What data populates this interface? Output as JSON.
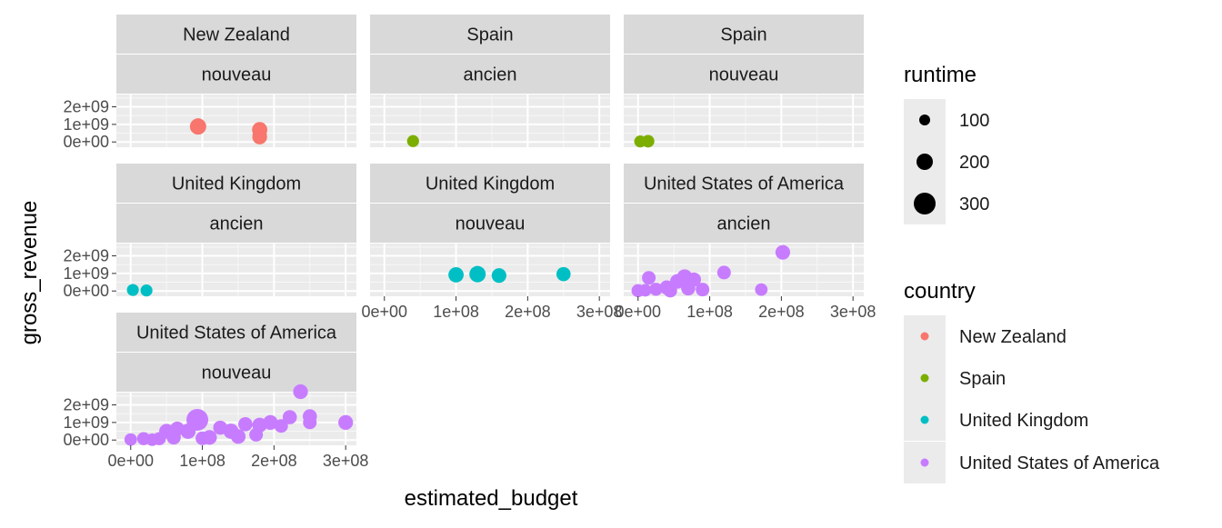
{
  "chart_data": {
    "type": "scatter",
    "xlabel": "estimated_budget",
    "ylabel": "gross_revenue",
    "xlim": [
      -20000000.0,
      315000000.0
    ],
    "ylim": [
      -300000000.0,
      2700000000.0
    ],
    "xticks": [
      0,
      100000000,
      200000000,
      300000000
    ],
    "xtick_labels": [
      "0e+00",
      "1e+08",
      "2e+08",
      "3e+08"
    ],
    "yticks": [
      0,
      1000000000,
      2000000000
    ],
    "ytick_labels": [
      "0e+00",
      "1e+09",
      "2e+09"
    ],
    "grid": true,
    "legend_position": "right",
    "size_legend": {
      "title": "runtime",
      "items": [
        {
          "label": "100",
          "value": 100
        },
        {
          "label": "200",
          "value": 200
        },
        {
          "label": "300",
          "value": 300
        }
      ]
    },
    "color_legend": {
      "title": "country",
      "items": [
        {
          "label": "New Zealand",
          "color": "#F8766D"
        },
        {
          "label": "Spain",
          "color": "#7CAE00"
        },
        {
          "label": "United Kingdom",
          "color": "#00BFC4"
        },
        {
          "label": "United States of America",
          "color": "#C77CFF"
        }
      ]
    },
    "panels": [
      {
        "strip_top": "New Zealand",
        "strip_bottom": "nouveau",
        "color": "#F8766D",
        "points": [
          [
            94000000,
            880000000,
            200
          ],
          [
            180000000,
            700000000,
            180
          ],
          [
            180000000,
            420000000,
            160
          ],
          [
            180000000,
            280000000,
            170
          ]
        ]
      },
      {
        "strip_top": "Spain",
        "strip_bottom": "ancien",
        "color": "#7CAE00",
        "points": [
          [
            40000000,
            50000000,
            120
          ]
        ]
      },
      {
        "strip_top": "Spain",
        "strip_bottom": "nouveau",
        "color": "#7CAE00",
        "points": [
          [
            3000000,
            30000000,
            120
          ],
          [
            14000000,
            40000000,
            130
          ]
        ]
      },
      {
        "strip_top": "United Kingdom",
        "strip_bottom": "ancien",
        "color": "#00BFC4",
        "points": [
          [
            3000000,
            60000000,
            120
          ],
          [
            22000000,
            30000000,
            120
          ]
        ]
      },
      {
        "strip_top": "United Kingdom",
        "strip_bottom": "nouveau",
        "color": "#00BFC4",
        "points": [
          [
            100000000,
            920000000,
            180
          ],
          [
            130000000,
            960000000,
            200
          ],
          [
            160000000,
            880000000,
            170
          ],
          [
            250000000,
            960000000,
            160
          ]
        ]
      },
      {
        "strip_top": "United States of America",
        "strip_bottom": "ancien",
        "color": "#C77CFF",
        "points": [
          [
            0,
            20000000,
            140
          ],
          [
            15000000,
            750000000,
            150
          ],
          [
            25000000,
            100000000,
            140
          ],
          [
            40000000,
            200000000,
            160
          ],
          [
            55000000,
            550000000,
            170
          ],
          [
            65000000,
            800000000,
            180
          ],
          [
            78000000,
            650000000,
            160
          ],
          [
            90000000,
            80000000,
            150
          ],
          [
            120000000,
            1050000000,
            150
          ],
          [
            172000000,
            80000000,
            130
          ],
          [
            202000000,
            2200000000,
            170
          ],
          [
            10000000,
            40000000,
            130
          ],
          [
            45000000,
            20000000,
            150
          ],
          [
            70000000,
            150000000,
            160
          ]
        ]
      },
      {
        "strip_top": "United States of America",
        "strip_bottom": "nouveau",
        "color": "#C77CFF",
        "points": [
          [
            0,
            30000000,
            130
          ],
          [
            18000000,
            80000000,
            140
          ],
          [
            30000000,
            20000000,
            130
          ],
          [
            50000000,
            500000000,
            170
          ],
          [
            65000000,
            650000000,
            160
          ],
          [
            80000000,
            500000000,
            180
          ],
          [
            93000000,
            1150000000,
            300
          ],
          [
            110000000,
            150000000,
            170
          ],
          [
            125000000,
            700000000,
            160
          ],
          [
            140000000,
            500000000,
            180
          ],
          [
            150000000,
            200000000,
            170
          ],
          [
            160000000,
            900000000,
            160
          ],
          [
            175000000,
            300000000,
            150
          ],
          [
            180000000,
            850000000,
            170
          ],
          [
            195000000,
            1000000000,
            170
          ],
          [
            210000000,
            800000000,
            150
          ],
          [
            222000000,
            1300000000,
            160
          ],
          [
            237000000,
            2750000000,
            170
          ],
          [
            250000000,
            1350000000,
            160
          ],
          [
            250000000,
            1000000000,
            150
          ],
          [
            300000000,
            1000000000,
            170
          ],
          [
            100000000,
            100000000,
            150
          ],
          [
            60000000,
            150000000,
            160
          ],
          [
            40000000,
            80000000,
            140
          ]
        ]
      }
    ]
  }
}
